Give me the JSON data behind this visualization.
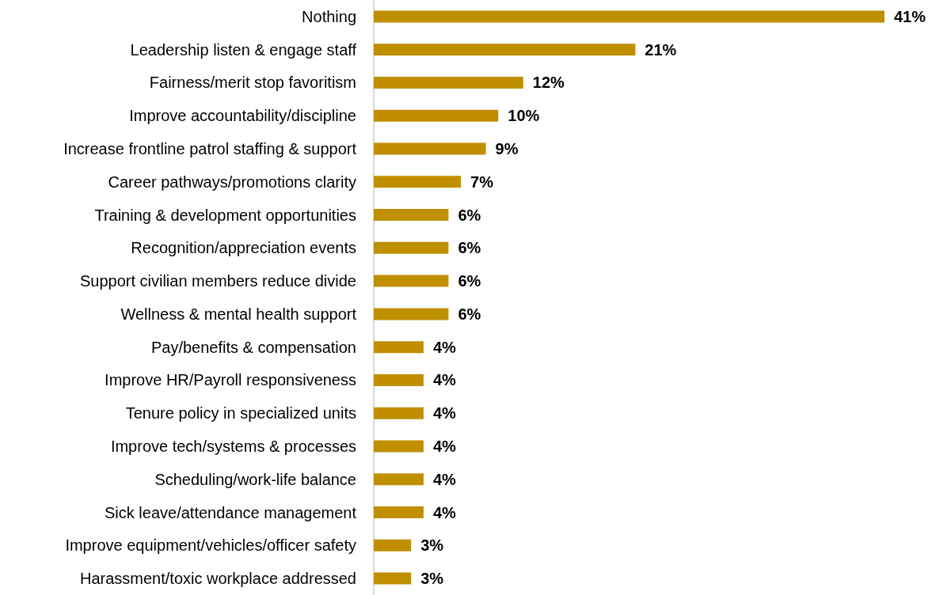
{
  "chart_data": {
    "type": "bar",
    "orientation": "horizontal",
    "categories": [
      "Nothing",
      "Leadership listen & engage staff",
      "Fairness/merit stop favoritism",
      "Improve accountability/discipline",
      "Increase frontline patrol staffing & support",
      "Career pathways/promotions clarity",
      "Training & development opportunities",
      "Recognition/appreciation events",
      "Support civilian members reduce divide",
      "Wellness & mental health support",
      "Pay/benefits & compensation",
      "Improve HR/Payroll responsiveness",
      "Tenure policy in specialized units",
      "Improve tech/systems & processes",
      "Scheduling/work-life balance",
      "Sick leave/attendance management",
      "Improve equipment/vehicles/officer safety",
      "Harassment/toxic workplace addressed"
    ],
    "values": [
      41,
      21,
      12,
      10,
      9,
      7,
      6,
      6,
      6,
      6,
      4,
      4,
      4,
      4,
      4,
      4,
      3,
      3
    ],
    "value_labels": [
      "41%",
      "21%",
      "12%",
      "10%",
      "9%",
      "7%",
      "6%",
      "6%",
      "6%",
      "6%",
      "4%",
      "4%",
      "4%",
      "4%",
      "4%",
      "4%",
      "3%",
      "3%"
    ],
    "color": "#bf8f00",
    "grid": false
  }
}
